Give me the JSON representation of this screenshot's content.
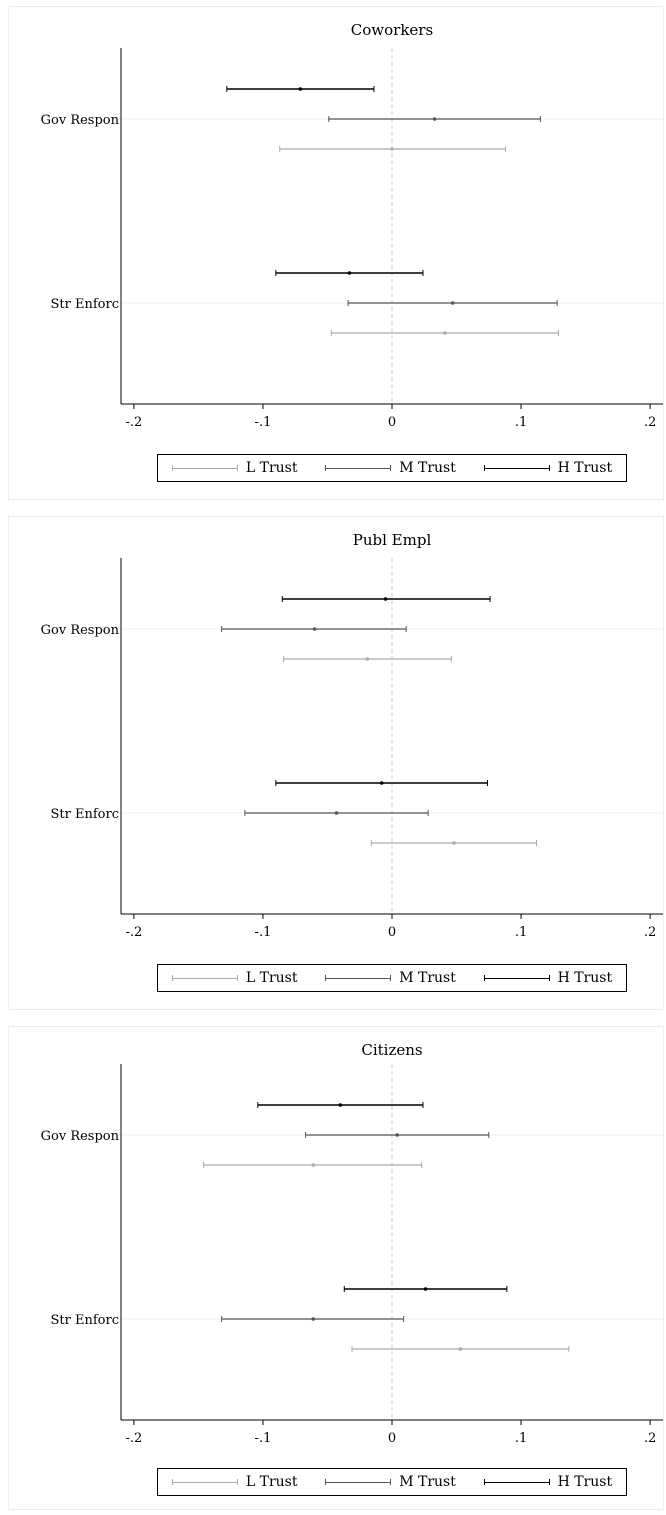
{
  "chart_data": [
    {
      "type": "scatter",
      "title": "Coworkers",
      "categories": [
        "Gov Respon",
        "Str Enforc"
      ],
      "xticks": [
        "-.2",
        "-.1",
        "0",
        ".1",
        ".2"
      ],
      "xlim": [
        -0.21,
        0.21
      ],
      "series": [
        {
          "name": "H Trust",
          "color": "#000000",
          "points": [
            {
              "category": "Gov Respon",
              "estimate": -0.071,
              "low": -0.128,
              "high": -0.014
            },
            {
              "category": "Str Enforc",
              "estimate": -0.033,
              "low": -0.09,
              "high": 0.024
            }
          ]
        },
        {
          "name": "M Trust",
          "color": "#555555",
          "points": [
            {
              "category": "Gov Respon",
              "estimate": 0.033,
              "low": -0.049,
              "high": 0.115
            },
            {
              "category": "Str Enforc",
              "estimate": 0.047,
              "low": -0.034,
              "high": 0.128
            }
          ]
        },
        {
          "name": "L Trust",
          "color": "#aaaaaa",
          "points": [
            {
              "category": "Gov Respon",
              "estimate": 0.0,
              "low": -0.087,
              "high": 0.088
            },
            {
              "category": "Str Enforc",
              "estimate": 0.041,
              "low": -0.047,
              "high": 0.129
            }
          ]
        }
      ]
    },
    {
      "type": "scatter",
      "title": "Publ Empl",
      "categories": [
        "Gov Respon",
        "Str Enforc"
      ],
      "xticks": [
        "-.2",
        "-.1",
        "0",
        ".1",
        ".2"
      ],
      "xlim": [
        -0.21,
        0.21
      ],
      "series": [
        {
          "name": "H Trust",
          "color": "#000000",
          "points": [
            {
              "category": "Gov Respon",
              "estimate": -0.005,
              "low": -0.085,
              "high": 0.076
            },
            {
              "category": "Str Enforc",
              "estimate": -0.008,
              "low": -0.09,
              "high": 0.074
            }
          ]
        },
        {
          "name": "M Trust",
          "color": "#555555",
          "points": [
            {
              "category": "Gov Respon",
              "estimate": -0.06,
              "low": -0.132,
              "high": 0.011
            },
            {
              "category": "Str Enforc",
              "estimate": -0.043,
              "low": -0.114,
              "high": 0.028
            }
          ]
        },
        {
          "name": "L Trust",
          "color": "#aaaaaa",
          "points": [
            {
              "category": "Gov Respon",
              "estimate": -0.019,
              "low": -0.084,
              "high": 0.046
            },
            {
              "category": "Str Enforc",
              "estimate": 0.048,
              "low": -0.016,
              "high": 0.112
            }
          ]
        }
      ]
    },
    {
      "type": "scatter",
      "title": "Citizens",
      "categories": [
        "Gov Respon",
        "Str Enforc"
      ],
      "xticks": [
        "-.2",
        "-.1",
        "0",
        ".1",
        ".2"
      ],
      "xlim": [
        -0.21,
        0.21
      ],
      "series": [
        {
          "name": "H Trust",
          "color": "#000000",
          "points": [
            {
              "category": "Gov Respon",
              "estimate": -0.04,
              "low": -0.104,
              "high": 0.024
            },
            {
              "category": "Str Enforc",
              "estimate": 0.026,
              "low": -0.037,
              "high": 0.089
            }
          ]
        },
        {
          "name": "M Trust",
          "color": "#555555",
          "points": [
            {
              "category": "Gov Respon",
              "estimate": 0.004,
              "low": -0.067,
              "high": 0.075
            },
            {
              "category": "Str Enforc",
              "estimate": -0.061,
              "low": -0.132,
              "high": 0.009
            }
          ]
        },
        {
          "name": "L Trust",
          "color": "#aaaaaa",
          "points": [
            {
              "category": "Gov Respon",
              "estimate": -0.061,
              "low": -0.146,
              "high": 0.023
            },
            {
              "category": "Str Enforc",
              "estimate": 0.053,
              "low": -0.031,
              "high": 0.137
            }
          ]
        }
      ]
    }
  ],
  "legend": {
    "items": [
      {
        "label": "L Trust",
        "color": "#aaaaaa"
      },
      {
        "label": "M Trust",
        "color": "#555555"
      },
      {
        "label": "H Trust",
        "color": "#000000"
      }
    ]
  }
}
